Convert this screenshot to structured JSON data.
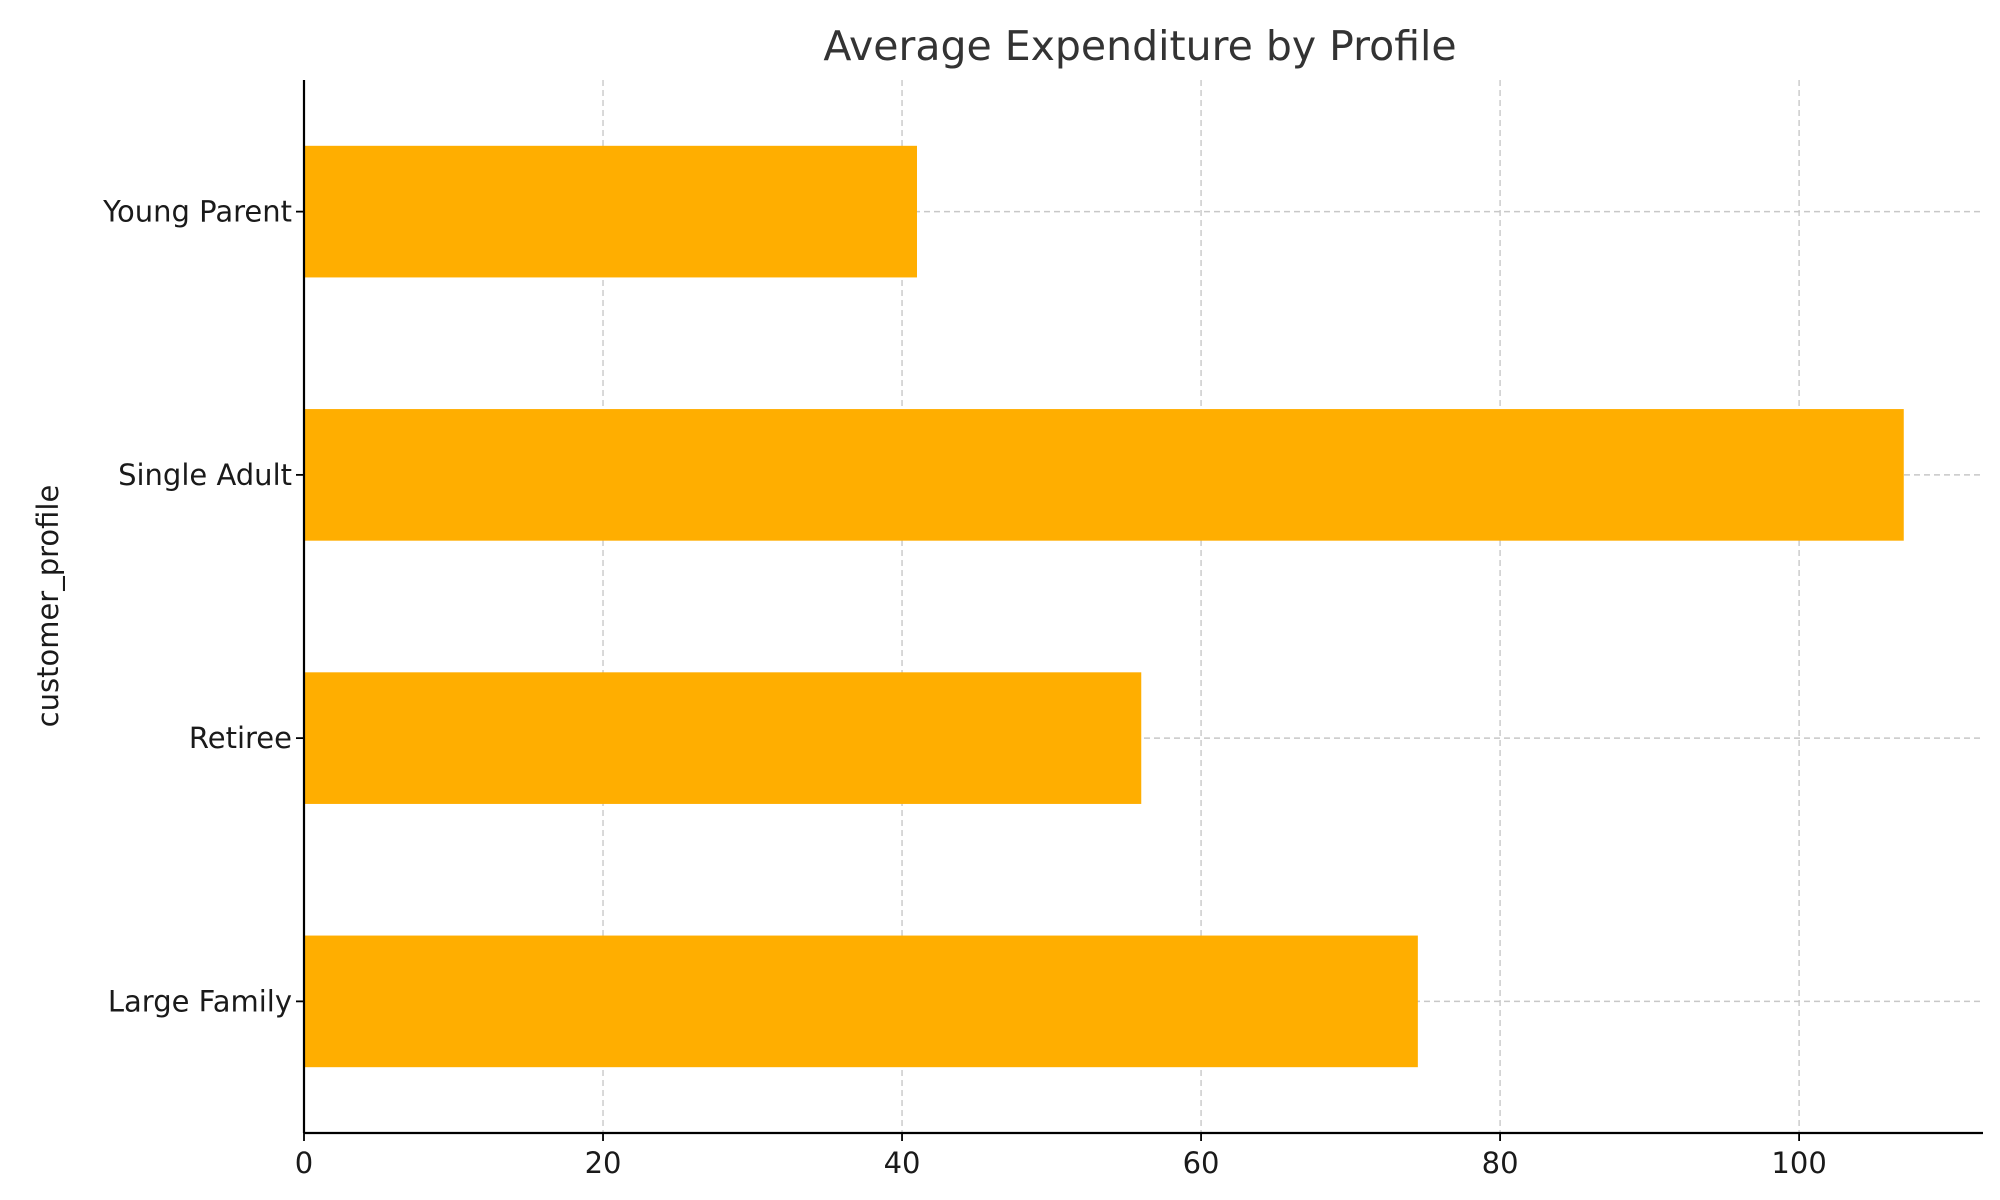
{
  "chart_data": {
    "type": "bar",
    "orientation": "horizontal",
    "title": "Average Expenditure by Profile",
    "xlabel": "",
    "ylabel": "customer_profile",
    "categories": [
      "Large Family",
      "Retiree",
      "Single Adult",
      "Young Parent"
    ],
    "values": [
      74.5,
      56,
      107,
      41
    ],
    "xlim": [
      0,
      112.3
    ],
    "xticks": [
      0,
      20,
      40,
      60,
      80,
      100
    ],
    "xtick_labels": [
      "0",
      "20",
      "40",
      "60",
      "80",
      "100"
    ],
    "bar_color": "#FFAE00",
    "grid": true,
    "legend": null
  }
}
